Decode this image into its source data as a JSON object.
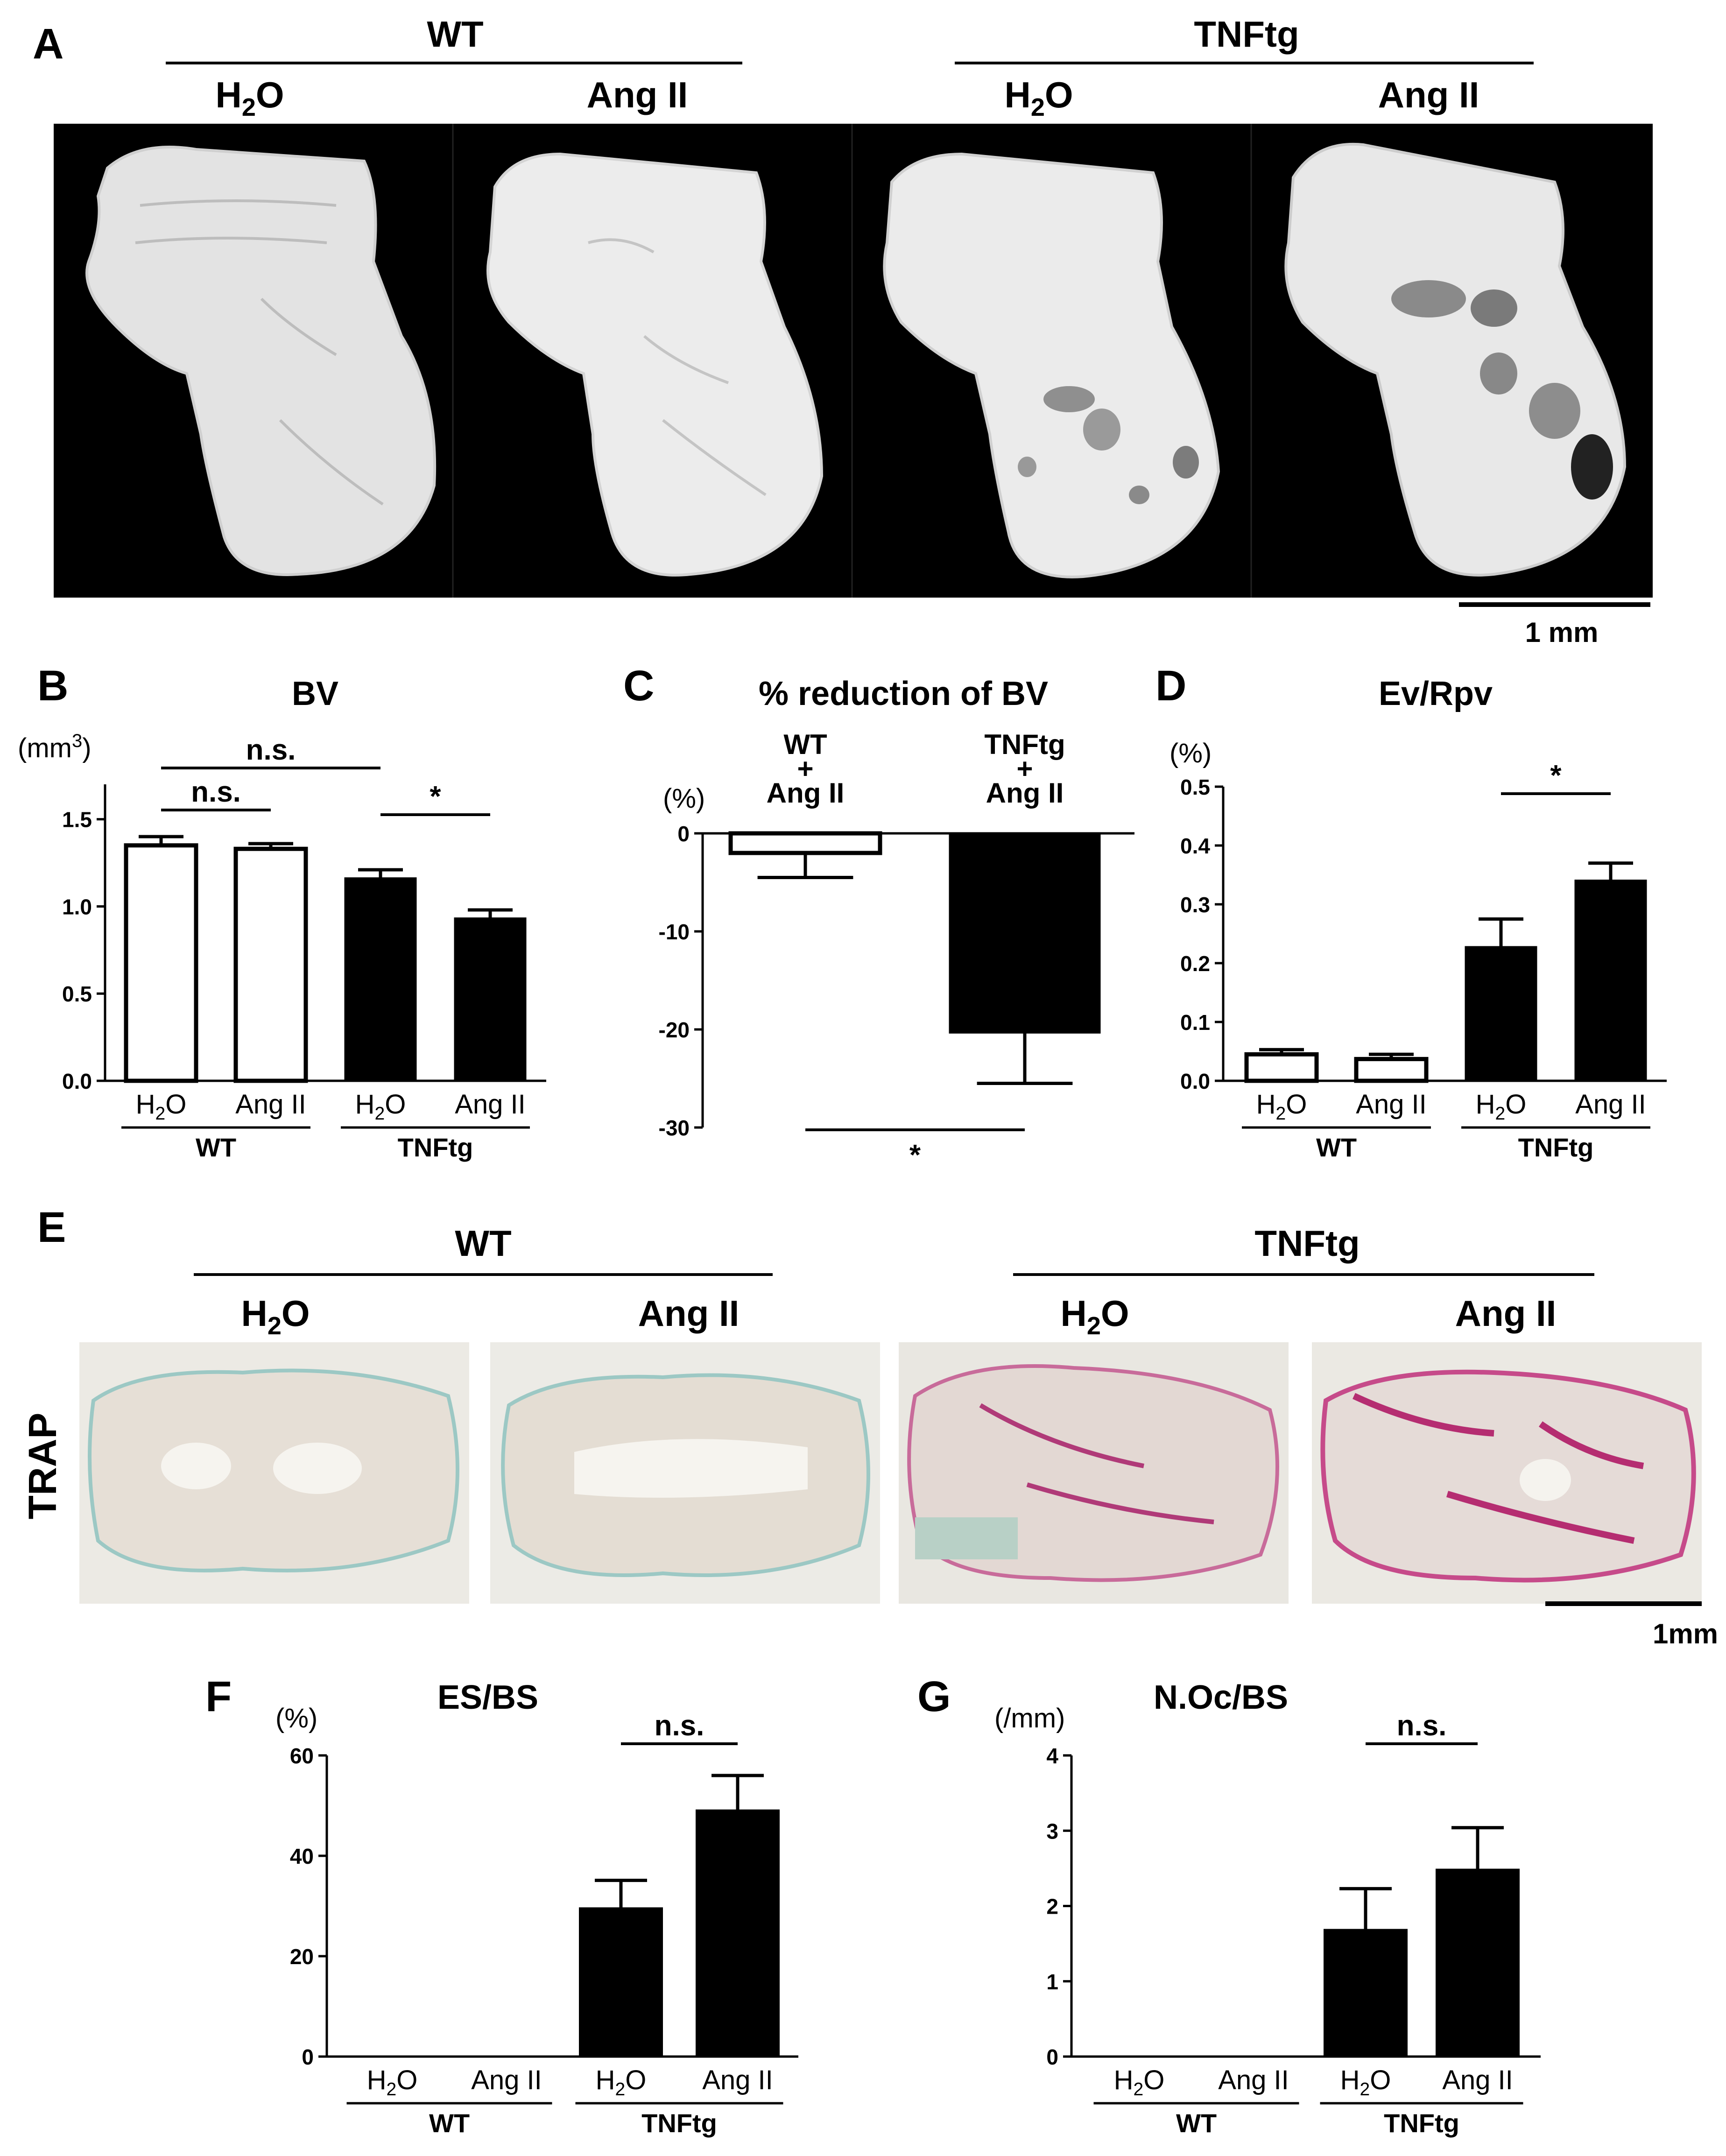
{
  "panel_letters": {
    "a": "A",
    "b": "B",
    "c": "C",
    "d": "D",
    "e": "E",
    "f": "F",
    "g": "G"
  },
  "groups": {
    "wt": "WT",
    "tnftg": "TNFtg"
  },
  "conditions": {
    "h2o_main": "H",
    "h2o_sub": "2",
    "h2o_tail": "O",
    "ang": "Ang II"
  },
  "scale_bars": {
    "a": "1 mm",
    "e": "1mm"
  },
  "trap_label": "TRAP",
  "chart_data": [
    {
      "id": "B",
      "type": "bar",
      "title": "BV",
      "ylabel": "(mm3)",
      "categories": [
        "WT H2O",
        "WT Ang II",
        "TNFtg H2O",
        "TNFtg Ang II"
      ],
      "values": [
        1.35,
        1.33,
        1.16,
        0.93
      ],
      "errors": [
        0.05,
        0.03,
        0.05,
        0.05
      ],
      "fills": [
        "#ffffff",
        "#ffffff",
        "#000000",
        "#000000"
      ],
      "ylim": [
        0,
        1.7
      ],
      "yticks": [
        "0.0",
        "0.5",
        "1.0",
        "1.5"
      ],
      "annotations": [
        "n.s.",
        "n.s.",
        "*"
      ]
    },
    {
      "id": "C",
      "type": "bar",
      "title": "% reduction of BV",
      "ylabel": "(%)",
      "categories": [
        "WT + Ang II",
        "TNFtg + Ang II"
      ],
      "values": [
        -2.0,
        -20.3
      ],
      "errors": [
        2.5,
        5.2
      ],
      "fills": [
        "#ffffff",
        "#000000"
      ],
      "ylim": [
        -30,
        0
      ],
      "yticks": [
        "0",
        "-10",
        "-20",
        "-30"
      ],
      "annotations": [
        "*"
      ]
    },
    {
      "id": "D",
      "type": "bar",
      "title": "Ev/Rpv",
      "ylabel": "(%)",
      "categories": [
        "WT H2O",
        "WT Ang II",
        "TNFtg H2O",
        "TNFtg Ang II"
      ],
      "values": [
        0.045,
        0.037,
        0.227,
        0.34
      ],
      "errors": [
        0.008,
        0.008,
        0.048,
        0.03
      ],
      "fills": [
        "#ffffff",
        "#ffffff",
        "#000000",
        "#000000"
      ],
      "ylim": [
        0,
        0.5
      ],
      "yticks": [
        "0.0",
        "0.1",
        "0.2",
        "0.3",
        "0.4",
        "0.5"
      ],
      "annotations": [
        "*"
      ]
    },
    {
      "id": "F",
      "type": "bar",
      "title": "ES/BS",
      "ylabel": "(%)",
      "categories": [
        "WT H2O",
        "WT Ang II",
        "TNFtg H2O",
        "TNFtg Ang II"
      ],
      "values": [
        0,
        0,
        29.5,
        49.0
      ],
      "errors": [
        0,
        0,
        5.6,
        7.0
      ],
      "fills": [
        "#000000",
        "#000000",
        "#000000",
        "#000000"
      ],
      "ylim": [
        0,
        60
      ],
      "yticks": [
        "0",
        "20",
        "40",
        "60"
      ],
      "annotations": [
        "n.s."
      ]
    },
    {
      "id": "G",
      "type": "bar",
      "title": "N.Oc/BS",
      "ylabel": "(/mm)",
      "categories": [
        "WT H2O",
        "WT Ang II",
        "TNFtg H2O",
        "TNFtg Ang II"
      ],
      "values": [
        0,
        0,
        1.68,
        2.48
      ],
      "errors": [
        0,
        0,
        0.55,
        0.56
      ],
      "fills": [
        "#000000",
        "#000000",
        "#000000",
        "#000000"
      ],
      "ylim": [
        0,
        4
      ],
      "yticks": [
        "0",
        "1",
        "2",
        "3",
        "4"
      ],
      "annotations": [
        "n.s."
      ]
    }
  ]
}
